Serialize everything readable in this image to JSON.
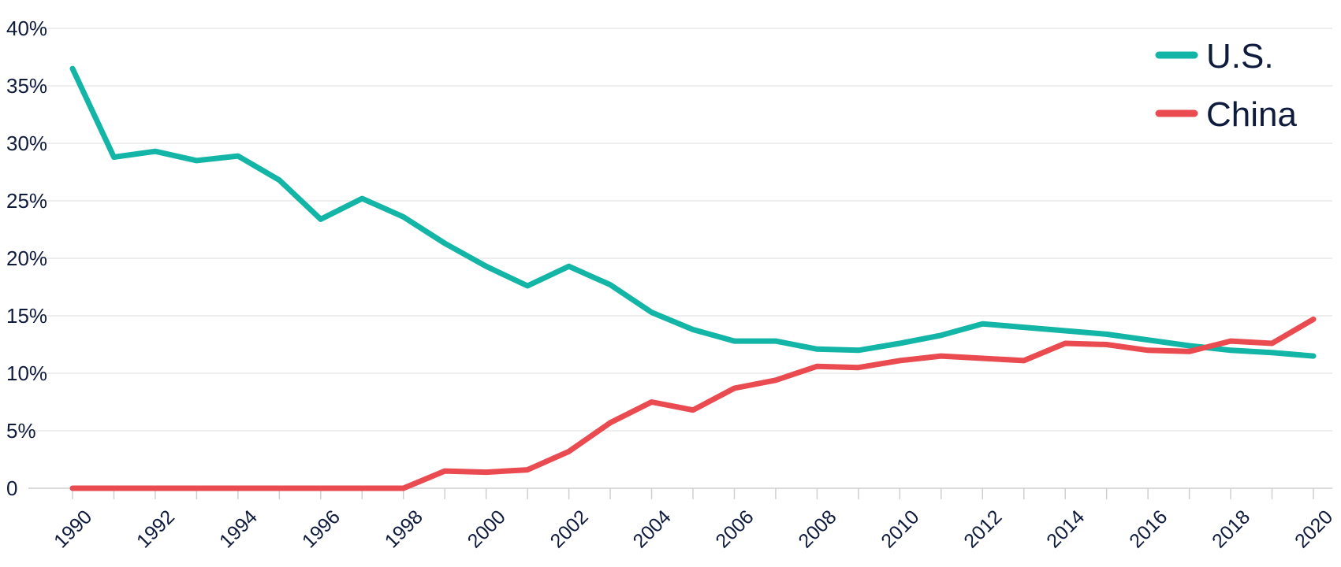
{
  "chart_data": {
    "type": "line",
    "title": "",
    "xlabel": "",
    "ylabel": "",
    "x": [
      1990,
      1991,
      1992,
      1993,
      1994,
      1995,
      1996,
      1997,
      1998,
      1999,
      2000,
      2001,
      2002,
      2003,
      2004,
      2005,
      2006,
      2007,
      2008,
      2009,
      2010,
      2011,
      2012,
      2013,
      2014,
      2015,
      2016,
      2017,
      2018,
      2019,
      2020
    ],
    "x_tick_labels": [
      "1990",
      "1992",
      "1994",
      "1996",
      "1998",
      "2000",
      "2002",
      "2004",
      "2006",
      "2008",
      "2010",
      "2012",
      "2014",
      "2016",
      "2018",
      "2020"
    ],
    "y_tick_labels": [
      "0",
      "5%",
      "10%",
      "15%",
      "20%",
      "25%",
      "30%",
      "35%",
      "40%"
    ],
    "y_ticks": [
      0,
      5,
      10,
      15,
      20,
      25,
      30,
      35,
      40
    ],
    "ylim": [
      0,
      40
    ],
    "xlim": [
      1990,
      2020
    ],
    "grid": true,
    "legend_position": "top-right",
    "series": [
      {
        "name": "U.S.",
        "color": "#13b5a7",
        "values": [
          36.5,
          28.8,
          29.3,
          28.5,
          28.9,
          26.8,
          23.4,
          25.2,
          23.6,
          21.3,
          19.3,
          17.6,
          19.3,
          17.7,
          15.3,
          13.8,
          12.8,
          12.8,
          12.1,
          12.0,
          12.6,
          13.3,
          14.3,
          14.0,
          13.7,
          13.4,
          12.9,
          12.4,
          12.0,
          11.8,
          11.5
        ],
        "label": "U.S."
      },
      {
        "name": "China",
        "color": "#e94b50",
        "values": [
          0,
          0,
          0,
          0,
          0,
          0,
          0,
          0,
          0,
          1.5,
          1.4,
          1.6,
          3.2,
          5.7,
          7.5,
          6.8,
          8.7,
          9.4,
          10.6,
          10.5,
          11.1,
          11.5,
          11.3,
          11.1,
          12.6,
          12.5,
          12.0,
          11.9,
          12.8,
          12.6,
          14.7
        ],
        "label": "China"
      }
    ]
  }
}
